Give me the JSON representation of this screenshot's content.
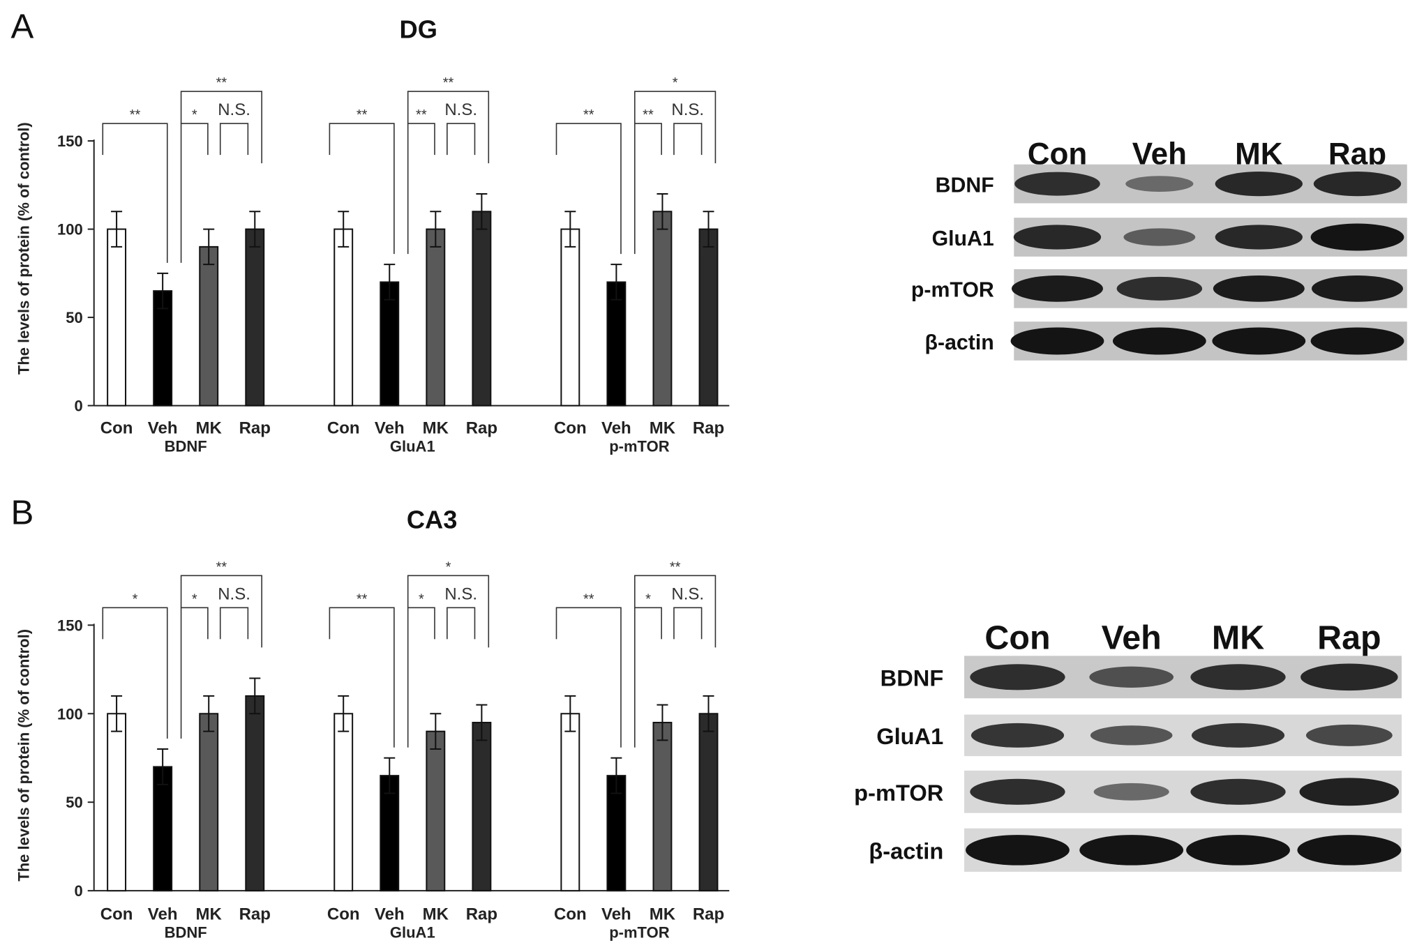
{
  "groups": [
    "Con",
    "Veh",
    "MK",
    "Rap"
  ],
  "colors": {
    "Con": "#ffffff",
    "Veh": "#000000",
    "MK": "#595959",
    "Rap": "#2b2b2b"
  },
  "y_axis": {
    "label": "The levels of protein (% of control)",
    "ticks": [
      0,
      50,
      100,
      150
    ],
    "ylim": [
      0,
      150
    ]
  },
  "chart_data": [
    {
      "panel": "A",
      "title": "DG",
      "type": "bar",
      "proteins": [
        {
          "name": "BDNF",
          "values": [
            100,
            65,
            90,
            100
          ],
          "errors": [
            10,
            10,
            10,
            10
          ],
          "sig": {
            "con_veh": "**",
            "veh_mk": "*",
            "mk_rap": "N.S.",
            "veh_rap": "**"
          }
        },
        {
          "name": "GluA1",
          "values": [
            100,
            70,
            100,
            110
          ],
          "errors": [
            10,
            10,
            10,
            10
          ],
          "sig": {
            "con_veh": "**",
            "veh_mk": "**",
            "mk_rap": "N.S.",
            "veh_rap": "**"
          }
        },
        {
          "name": "p-mTOR",
          "values": [
            100,
            70,
            110,
            100
          ],
          "errors": [
            10,
            10,
            10,
            10
          ],
          "sig": {
            "con_veh": "**",
            "veh_mk": "**",
            "mk_rap": "N.S.",
            "veh_rap": "*"
          }
        }
      ]
    },
    {
      "panel": "B",
      "title": "CA3",
      "type": "bar",
      "proteins": [
        {
          "name": "BDNF",
          "values": [
            100,
            70,
            100,
            110
          ],
          "errors": [
            10,
            10,
            10,
            10
          ],
          "sig": {
            "con_veh": "*",
            "veh_mk": "*",
            "mk_rap": "N.S.",
            "veh_rap": "**"
          }
        },
        {
          "name": "GluA1",
          "values": [
            100,
            65,
            90,
            95
          ],
          "errors": [
            10,
            10,
            10,
            10
          ],
          "sig": {
            "con_veh": "**",
            "veh_mk": "*",
            "mk_rap": "N.S.",
            "veh_rap": "*"
          }
        },
        {
          "name": "p-mTOR",
          "values": [
            100,
            65,
            95,
            100
          ],
          "errors": [
            10,
            10,
            10,
            10
          ],
          "sig": {
            "con_veh": "**",
            "veh_mk": "*",
            "mk_rap": "N.S.",
            "veh_rap": "**"
          }
        }
      ]
    }
  ],
  "blots": [
    {
      "panel": "A",
      "columns": [
        "Con",
        "Veh",
        "MK",
        "Rap"
      ],
      "rows": [
        {
          "label": "BDNF",
          "intensity": [
            0.8,
            0.35,
            0.85,
            0.85
          ]
        },
        {
          "label": "GluA1",
          "intensity": [
            0.85,
            0.45,
            0.85,
            1.0
          ]
        },
        {
          "label": "p-mTOR",
          "intensity": [
            0.95,
            0.8,
            0.95,
            0.95
          ]
        },
        {
          "label": "β-actin",
          "intensity": [
            1.0,
            1.0,
            1.0,
            1.0
          ]
        }
      ]
    },
    {
      "panel": "B",
      "columns": [
        "Con",
        "Veh",
        "MK",
        "Rap"
      ],
      "rows": [
        {
          "label": "BDNF",
          "intensity": [
            0.8,
            0.55,
            0.8,
            0.85
          ]
        },
        {
          "label": "GluA1",
          "intensity": [
            0.75,
            0.5,
            0.75,
            0.6
          ]
        },
        {
          "label": "p-mTOR",
          "intensity": [
            0.8,
            0.35,
            0.8,
            0.9
          ]
        },
        {
          "label": "β-actin",
          "intensity": [
            1.0,
            1.0,
            1.0,
            1.0
          ]
        }
      ]
    }
  ]
}
